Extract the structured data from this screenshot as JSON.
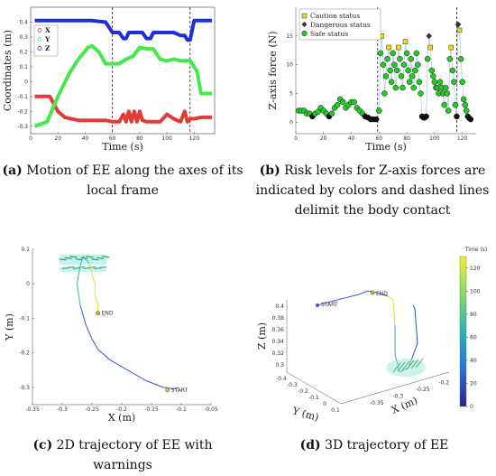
{
  "captions": {
    "a_letter": "(a)",
    "a_text": "Motion of EE along the axes of its local frame",
    "b_letter": "(b)",
    "b_text": "Risk levels for Z-axis forces are indicated by colors and dashed lines delimit the body contact",
    "c_letter": "(c)",
    "c_text": "2D trajectory of EE with warnings",
    "d_letter": "(d)",
    "d_text": "3D trajectory of EE"
  },
  "colors": {
    "x": "#e53935",
    "y": "#43e84a",
    "z": "#1f2fd8",
    "caution": "#e8e000",
    "dangerous": "#4a2a2a",
    "safe": "#22cc22"
  },
  "chart_data": [
    {
      "type": "line",
      "xlabel": "Time (s)",
      "ylabel": "Coordinates (m)",
      "xlim": [
        0,
        135
      ],
      "ylim": [
        -0.35,
        0.5
      ],
      "xticks": [
        "0",
        "20",
        "40",
        "60",
        "80",
        "100",
        "120"
      ],
      "yticks": [
        "-0.3",
        "-0.2",
        "-0.1",
        "0",
        "0.1",
        "0.2",
        "0.3",
        "0.4"
      ],
      "legend": "top-left",
      "vlines": [
        60,
        117
      ],
      "series": [
        {
          "name": "X",
          "x": [
            3,
            14,
            17,
            20,
            25,
            35,
            45,
            55,
            60,
            65,
            68,
            70,
            72,
            74,
            76,
            78,
            80,
            82,
            85,
            90,
            95,
            100,
            105,
            110,
            113,
            115,
            117,
            120,
            125,
            133
          ],
          "y": [
            -0.1,
            -0.1,
            -0.15,
            -0.2,
            -0.24,
            -0.26,
            -0.26,
            -0.26,
            -0.27,
            -0.27,
            -0.22,
            -0.27,
            -0.2,
            -0.27,
            -0.2,
            -0.27,
            -0.2,
            -0.26,
            -0.27,
            -0.27,
            -0.27,
            -0.22,
            -0.25,
            -0.27,
            -0.2,
            -0.27,
            -0.25,
            -0.25,
            -0.24,
            -0.24
          ]
        },
        {
          "name": "Y",
          "x": [
            3,
            12,
            20,
            28,
            35,
            42,
            45,
            50,
            55,
            60,
            65,
            70,
            75,
            80,
            85,
            90,
            95,
            100,
            105,
            110,
            117,
            122,
            125,
            133
          ],
          "y": [
            -0.3,
            -0.27,
            -0.1,
            0.05,
            0.15,
            0.23,
            0.24,
            0.2,
            0.12,
            0.12,
            0.12,
            0.15,
            0.17,
            0.23,
            0.22,
            0.22,
            0.15,
            0.14,
            0.15,
            0.14,
            0.14,
            0.07,
            -0.08,
            -0.08
          ]
        },
        {
          "name": "Z",
          "x": [
            3,
            30,
            45,
            55,
            60,
            65,
            68,
            70,
            72,
            75,
            78,
            82,
            85,
            88,
            90,
            95,
            100,
            105,
            110,
            113,
            115,
            117,
            120,
            125,
            133
          ],
          "y": [
            0.41,
            0.41,
            0.41,
            0.4,
            0.33,
            0.33,
            0.29,
            0.29,
            0.33,
            0.33,
            0.33,
            0.33,
            0.29,
            0.29,
            0.33,
            0.33,
            0.33,
            0.33,
            0.31,
            0.31,
            0.28,
            0.28,
            0.41,
            0.41,
            0.41
          ]
        }
      ]
    },
    {
      "type": "scatter",
      "xlabel": "Time (s)",
      "ylabel": "Z-axis force (N)",
      "xlim": [
        0,
        130
      ],
      "ylim": [
        -2,
        20
      ],
      "xticks": [
        "0",
        "20",
        "40",
        "60",
        "80",
        "100",
        "120"
      ],
      "yticks": [
        "0",
        "5",
        "10",
        "15"
      ],
      "legend": "top-right",
      "vlines": [
        59,
        116
      ],
      "series": [
        {
          "name": "Caution status"
        },
        {
          "name": "Dangerous status"
        },
        {
          "name": "Safe status"
        }
      ],
      "x": [
        2,
        4,
        6,
        8,
        10,
        12,
        14,
        16,
        18,
        20,
        22,
        24,
        26,
        28,
        30,
        32,
        34,
        36,
        38,
        40,
        42,
        44,
        46,
        48,
        50,
        52,
        54,
        56,
        58,
        60,
        61,
        62,
        63,
        64,
        65,
        66,
        67,
        68,
        69,
        70,
        71,
        72,
        73,
        74,
        75,
        76,
        77,
        78,
        79,
        80,
        81,
        82,
        83,
        84,
        85,
        86,
        87,
        88,
        89,
        90,
        91,
        92,
        93,
        94,
        95,
        96,
        97,
        98,
        99,
        100,
        101,
        102,
        103,
        104,
        105,
        106,
        107,
        108,
        109,
        110,
        111,
        112,
        113,
        114,
        115,
        116,
        117,
        118,
        119,
        120,
        121,
        122,
        123,
        124,
        125,
        126
      ],
      "y": [
        2,
        2,
        2,
        1.5,
        1.5,
        1,
        1.5,
        1.8,
        2.5,
        2,
        1.5,
        1,
        1.5,
        2.5,
        3,
        4,
        3.5,
        2.5,
        3,
        3.5,
        3.5,
        2.5,
        2,
        1.5,
        1,
        0.8,
        0.5,
        0.5,
        0.5,
        2,
        12,
        15,
        10,
        5,
        8,
        11,
        13,
        9,
        7,
        12,
        10,
        6,
        9,
        13,
        11,
        8,
        6,
        10,
        14,
        12,
        9,
        7,
        11,
        8,
        6,
        9,
        12,
        10,
        7,
        5,
        1,
        0.8,
        0.8,
        1,
        11,
        15,
        13,
        9,
        8,
        7,
        6,
        6,
        5,
        7,
        6,
        5,
        3,
        6,
        5,
        2,
        11,
        13,
        9,
        7,
        3,
        1,
        17,
        16,
        11,
        7,
        4,
        3,
        2,
        1,
        0.7,
        0.5
      ],
      "status": [
        "s",
        "s",
        "s",
        "s",
        "s",
        "s",
        "s",
        "s",
        "s",
        "s",
        "s",
        "s",
        "s",
        "s",
        "s",
        "s",
        "s",
        "s",
        "s",
        "s",
        "s",
        "s",
        "s",
        "s",
        "s",
        "s",
        "s",
        "s",
        "s",
        "s",
        "s",
        "c",
        "s",
        "s",
        "s",
        "s",
        "c",
        "s",
        "s",
        "s",
        "s",
        "s",
        "s",
        "c",
        "s",
        "s",
        "s",
        "s",
        "c",
        "s",
        "s",
        "s",
        "s",
        "s",
        "s",
        "s",
        "s",
        "s",
        "s",
        "s",
        "s",
        "s",
        "s",
        "s",
        "s",
        "d",
        "c",
        "s",
        "s",
        "s",
        "s",
        "s",
        "s",
        "s",
        "s",
        "s",
        "s",
        "s",
        "s",
        "s",
        "s",
        "c",
        "s",
        "s",
        "s",
        "s",
        "d",
        "c",
        "s",
        "s",
        "s",
        "s",
        "s",
        "s",
        "s",
        "s"
      ]
    },
    {
      "type": "line",
      "xlabel": "X (m)",
      "ylabel": "Y (m)",
      "xlim": [
        -0.35,
        -0.05
      ],
      "ylim": [
        -0.35,
        0.1
      ],
      "xticks": [
        "-0.35",
        "-0.3",
        "-0.25",
        "-0.2",
        "-0.15",
        "-0.1",
        "-0.05"
      ],
      "yticks": [
        "-0.3",
        "-0.2",
        "-0.1",
        "0",
        "0.1"
      ],
      "annotations": [
        "END",
        "START"
      ],
      "x": [
        -0.105,
        -0.11,
        -0.13,
        -0.16,
        -0.19,
        -0.22,
        -0.24,
        -0.25,
        -0.26,
        -0.27,
        -0.275,
        -0.27,
        -0.265,
        -0.255,
        -0.25,
        -0.245,
        -0.245,
        -0.24,
        -0.24
      ],
      "y": [
        -0.3,
        -0.305,
        -0.3,
        -0.28,
        -0.25,
        -0.22,
        -0.19,
        -0.16,
        -0.12,
        -0.06,
        0.0,
        0.05,
        0.08,
        0.06,
        0.03,
        0.0,
        -0.03,
        -0.06,
        -0.085
      ]
    },
    {
      "type": "line",
      "xlabel": "X (m)",
      "ylabel": "Y (m)",
      "zlabel": "Z (m)",
      "colorbar_label": "Time (s)",
      "colorbar_ticks": [
        "0",
        "20",
        "40",
        "60",
        "80",
        "100",
        "120"
      ],
      "zticks": [
        "0.3",
        "0.32",
        "0.34",
        "0.36",
        "0.38",
        "0.4"
      ],
      "yticks": [
        "-0.4",
        "-0.3",
        "-0.2",
        "-0.1",
        "0",
        "0.1"
      ],
      "xticks": [
        "-0.35",
        "-0.3",
        "-0.25",
        "-0.2"
      ],
      "annotations": [
        "START",
        "END"
      ]
    }
  ]
}
